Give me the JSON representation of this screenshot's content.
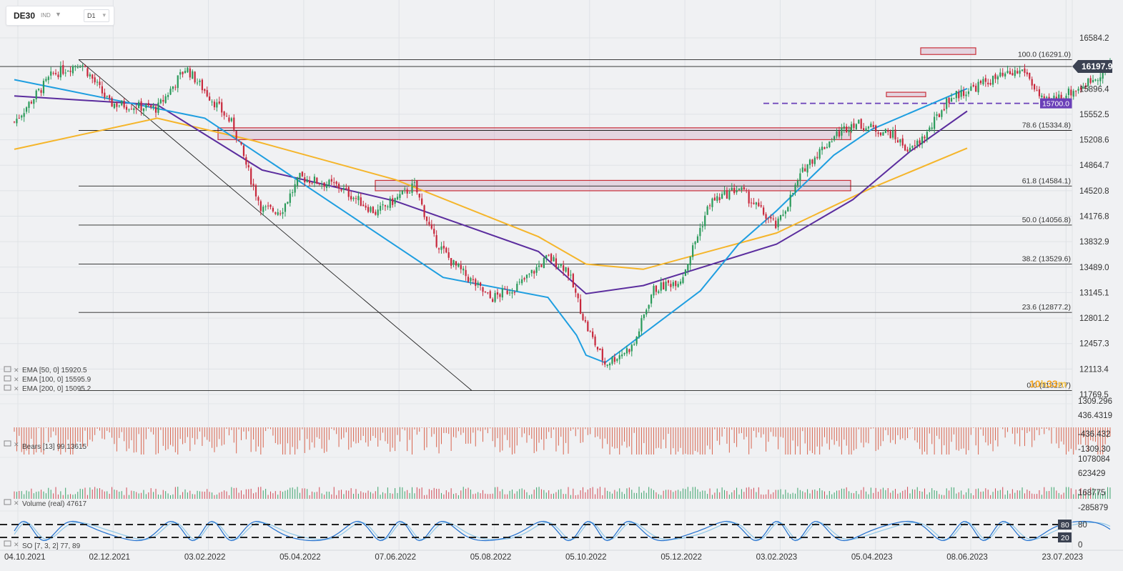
{
  "toolbar": {
    "symbol": "DE30",
    "market": "IND",
    "timeframe": "D1"
  },
  "chart_data": {
    "type": "candlestick",
    "instrument": "DE30",
    "timeframe": "D1",
    "x_dates": [
      "04.10.2021",
      "02.12.2021",
      "03.02.2022",
      "05.04.2022",
      "07.06.2022",
      "05.08.2022",
      "05.10.2022",
      "05.12.2022",
      "03.02.2023",
      "05.04.2023",
      "08.06.2023",
      "23.07.2023"
    ],
    "y_ticks": [
      "16584.2",
      "15896.4",
      "15552.5",
      "15208.6",
      "14864.7",
      "14520.8",
      "14176.8",
      "13832.9",
      "13489.0",
      "13145.1",
      "12801.2",
      "12457.3",
      "12113.4",
      "11769.5"
    ],
    "last_price": "16197.9",
    "timer": {
      "h": "10",
      "hs": "h",
      "m": "33",
      "ms": "m"
    },
    "fib_levels": [
      {
        "label": "100.0 (16291.0)",
        "value": 16291.0
      },
      {
        "label": "78.6 (15334.8)",
        "value": 15334.8
      },
      {
        "label": "61.8 (14584.1)",
        "value": 14584.1
      },
      {
        "label": "50.0 (14056.8)",
        "value": 14056.8
      },
      {
        "label": "38.2 (13529.6)",
        "value": 13529.6
      },
      {
        "label": "23.6 (12877.2)",
        "value": 12877.2
      },
      {
        "label": "0.0 (11822.7)",
        "value": 11822.7
      }
    ],
    "horizontal_level": {
      "label": "15700.0",
      "value": 15700.0,
      "color": "#6a3fb8"
    },
    "ema": [
      {
        "name": "EMA [50, 0]",
        "value": "15920.5",
        "color": "#1e9ee0"
      },
      {
        "name": "EMA [100, 0]",
        "value": "15595.9",
        "color": "#5b2d9e"
      },
      {
        "name": "EMA [200, 0]",
        "value": "15095.2",
        "color": "#f5b52a"
      }
    ],
    "ema_paths": {
      "ema50": [
        [
          0.0,
          16020
        ],
        [
          2.0,
          15500
        ],
        [
          4.5,
          13350
        ],
        [
          5.6,
          13080
        ],
        [
          5.9,
          12570
        ],
        [
          6.0,
          12300
        ],
        [
          6.2,
          12200
        ],
        [
          7.2,
          13170
        ],
        [
          7.6,
          13800
        ],
        [
          8.0,
          14250
        ],
        [
          8.6,
          15000
        ],
        [
          9.0,
          15350
        ],
        [
          10.0,
          15900
        ]
      ],
      "ema100": [
        [
          0.0,
          15800
        ],
        [
          1.5,
          15680
        ],
        [
          2.6,
          14800
        ],
        [
          4.0,
          14380
        ],
        [
          5.5,
          13700
        ],
        [
          6.0,
          13130
        ],
        [
          6.6,
          13240
        ],
        [
          8.0,
          13800
        ],
        [
          8.8,
          14400
        ],
        [
          9.4,
          15050
        ],
        [
          10.0,
          15595
        ]
      ],
      "ema200": [
        [
          0.0,
          15080
        ],
        [
          1.5,
          15500
        ],
        [
          2.5,
          15200
        ],
        [
          4.0,
          14670
        ],
        [
          5.5,
          13900
        ],
        [
          6.0,
          13530
        ],
        [
          6.6,
          13460
        ],
        [
          8.0,
          13950
        ],
        [
          9.0,
          14560
        ],
        [
          10.0,
          15095
        ]
      ]
    },
    "price_path": [
      [
        0.0,
        15450
      ],
      [
        0.4,
        16090
      ],
      [
        0.7,
        16250
      ],
      [
        1.0,
        15700
      ],
      [
        1.5,
        15630
      ],
      [
        1.8,
        16180
      ],
      [
        2.0,
        15870
      ],
      [
        2.3,
        15400
      ],
      [
        2.5,
        14610
      ],
      [
        2.6,
        14270
      ],
      [
        2.8,
        14250
      ],
      [
        3.0,
        14700
      ],
      [
        3.4,
        14580
      ],
      [
        3.8,
        14220
      ],
      [
        4.2,
        14590
      ],
      [
        4.4,
        13880
      ],
      [
        4.6,
        13540
      ],
      [
        5.0,
        13060
      ],
      [
        5.3,
        13250
      ],
      [
        5.6,
        13620
      ],
      [
        5.8,
        13470
      ],
      [
        6.0,
        12700
      ],
      [
        6.2,
        12180
      ],
      [
        6.5,
        12430
      ],
      [
        6.7,
        13180
      ],
      [
        7.0,
        13330
      ],
      [
        7.3,
        14360
      ],
      [
        7.6,
        14560
      ],
      [
        8.0,
        14030
      ],
      [
        8.3,
        14850
      ],
      [
        8.6,
        15250
      ],
      [
        8.8,
        15440
      ],
      [
        9.2,
        15290
      ],
      [
        9.4,
        15050
      ],
      [
        9.6,
        15330
      ],
      [
        9.8,
        15760
      ],
      [
        10.2,
        15990
      ],
      [
        10.6,
        16150
      ],
      [
        10.8,
        15700
      ],
      [
        11.2,
        15920
      ],
      [
        11.5,
        16197.9
      ]
    ],
    "bears": {
      "name": "Bears [13]",
      "value": "99.13615",
      "ticks": [
        "1309.296",
        "436.4319",
        "-436.432",
        "-1309.30"
      ]
    },
    "volume": {
      "name": "Volume (real)",
      "value": "47617",
      "ticks": [
        "1078084",
        "623429",
        "168775",
        "-285879"
      ]
    },
    "stochastic": {
      "name": "SO [7, 3, 2]",
      "k": "77",
      "d": "89",
      "levels": [
        "80",
        "20"
      ],
      "ticks": [
        "80",
        "0"
      ]
    }
  }
}
